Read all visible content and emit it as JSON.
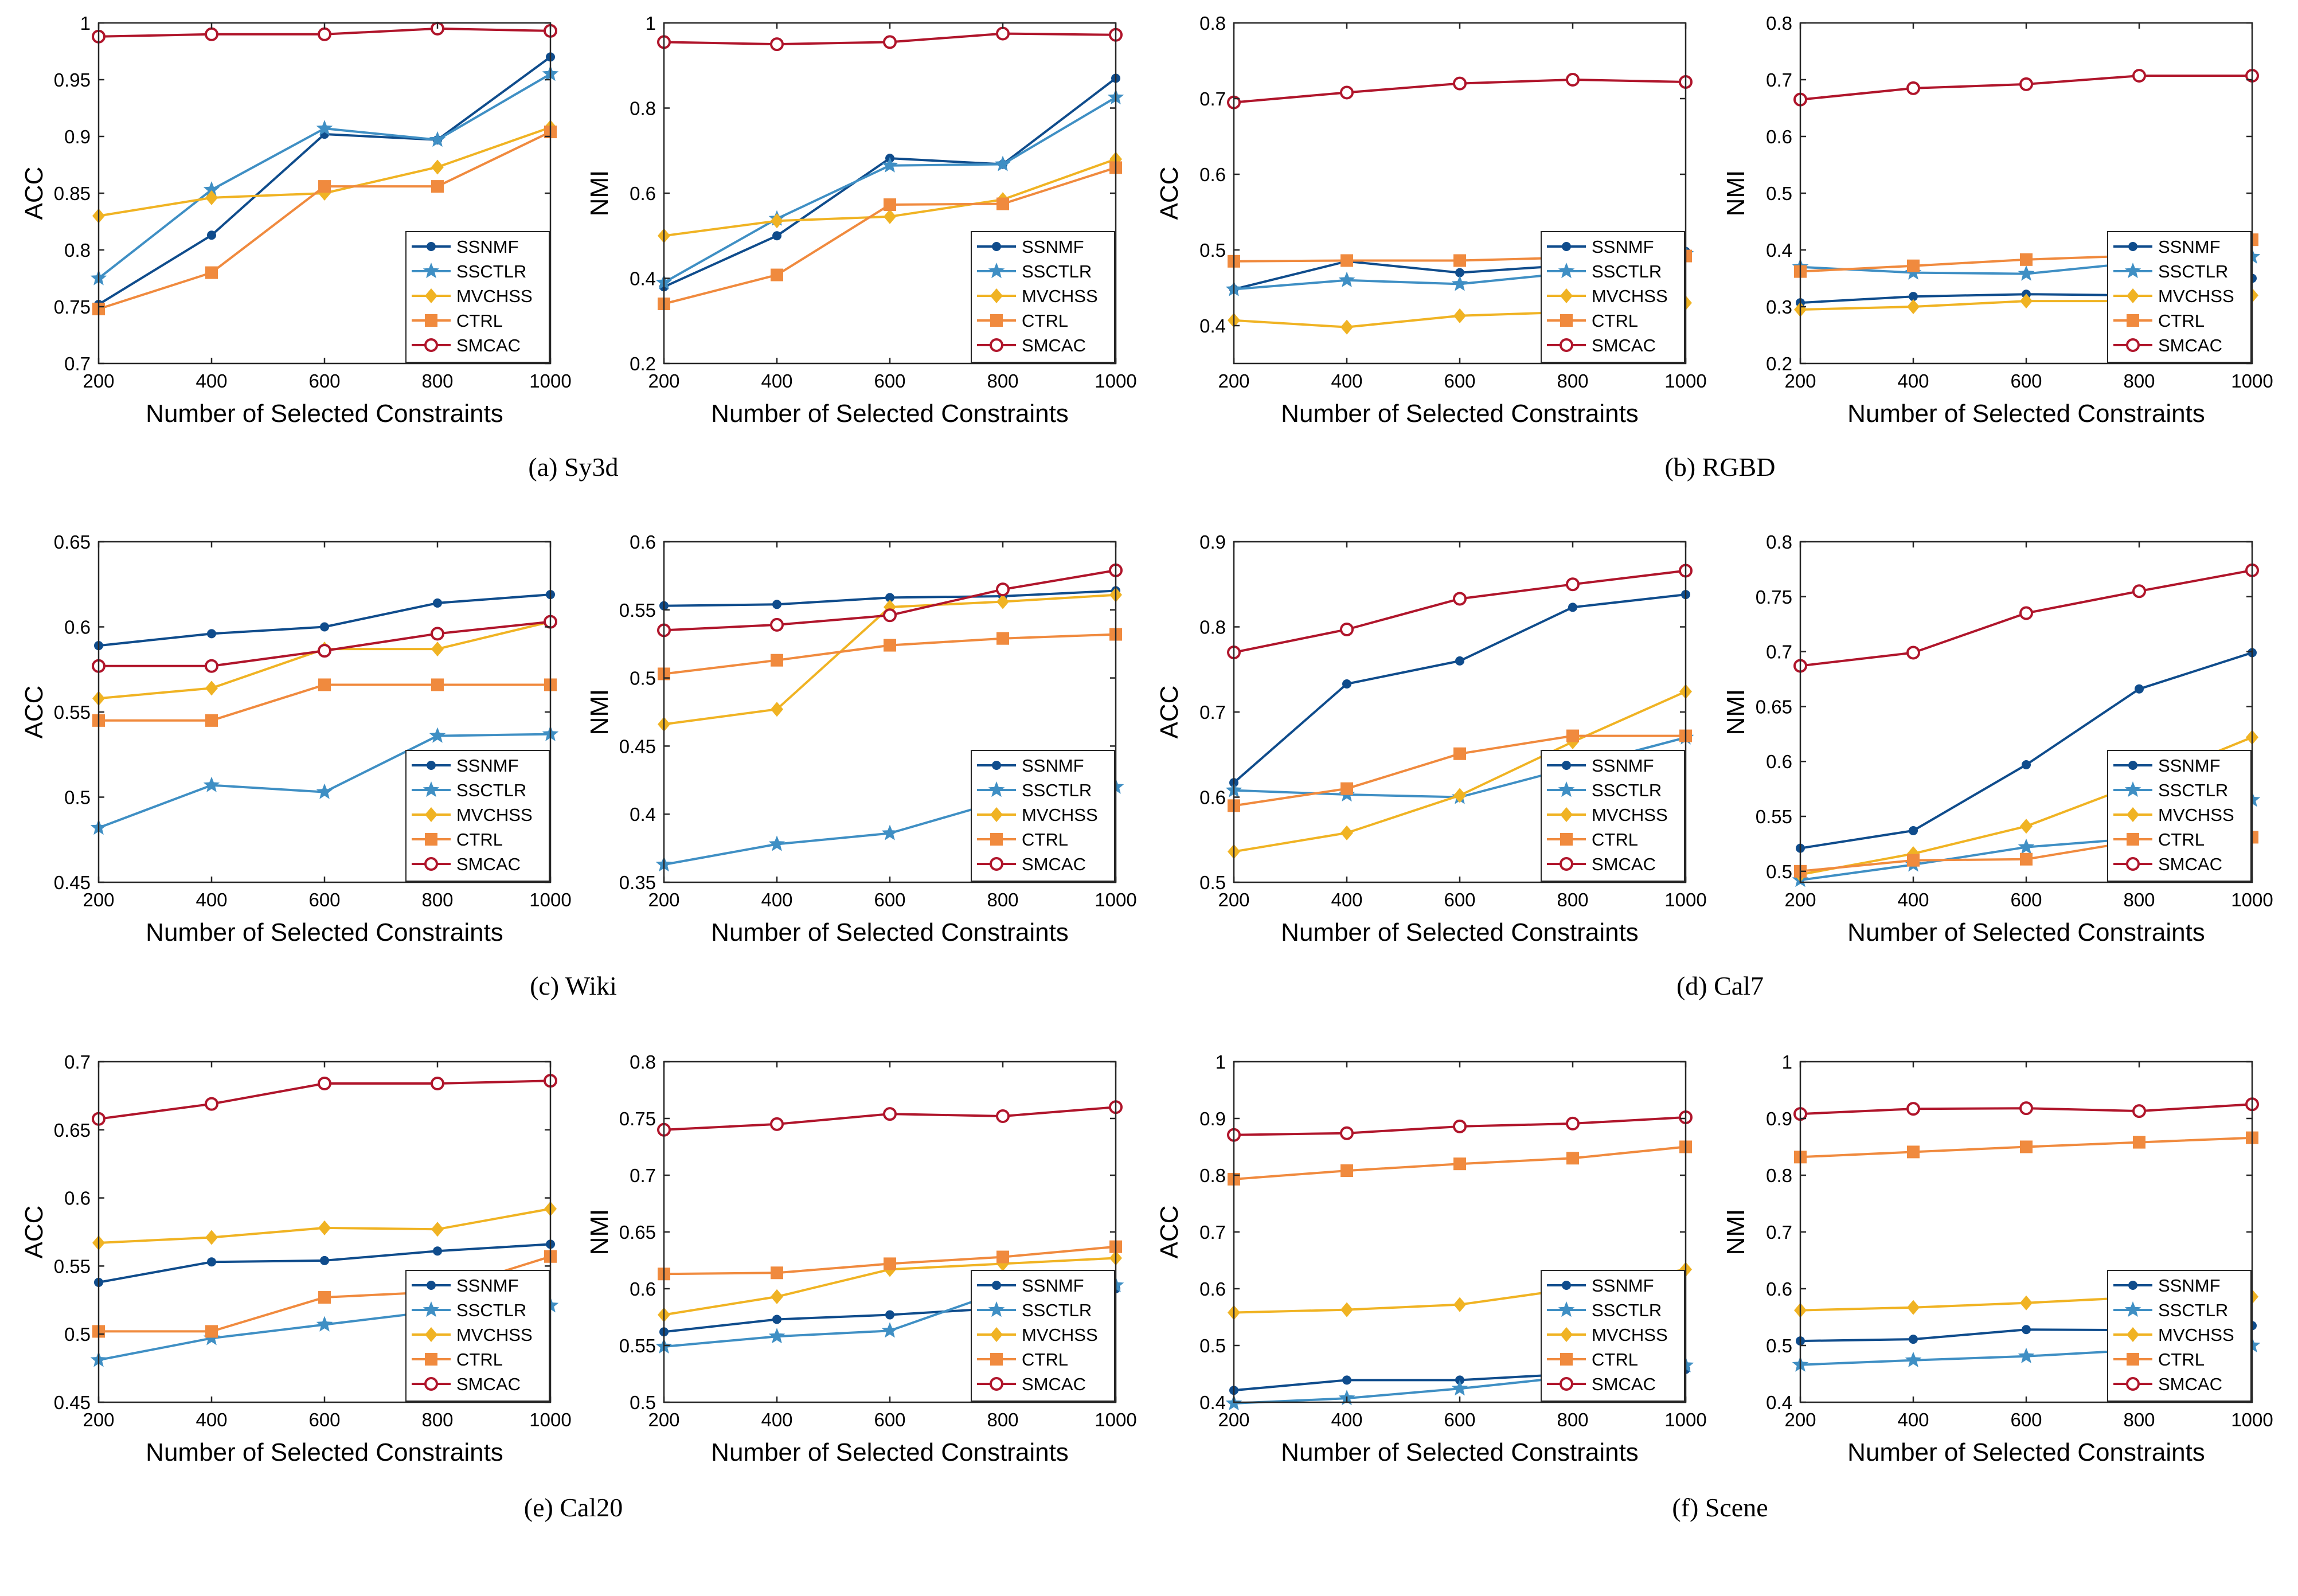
{
  "series_style": [
    {
      "name": "SSNMF",
      "color": "#0f4c8c",
      "marker": "dot"
    },
    {
      "name": "SSCTLR",
      "color": "#3f8fc4",
      "marker": "star"
    },
    {
      "name": "MVCHSS",
      "color": "#f0b323",
      "marker": "diamond"
    },
    {
      "name": "CTRL",
      "color": "#f08a3e",
      "marker": "square"
    },
    {
      "name": "SMCAC",
      "color": "#b0152b",
      "marker": "circle"
    }
  ],
  "chart_data": [
    {
      "type": "line",
      "panel": "a",
      "ylabel": "ACC",
      "xlabel": "Number of Selected Constraints",
      "x": [
        200,
        400,
        600,
        800,
        1000
      ],
      "ylim": [
        0.7,
        1
      ],
      "yticks": [
        0.7,
        0.75,
        0.8,
        0.85,
        0.9,
        0.95,
        1
      ],
      "ytick_labels": [
        "0.7",
        "0.75",
        "0.8",
        "0.85",
        "0.9",
        "0.95",
        "1"
      ],
      "series": [
        {
          "name": "SSNMF",
          "values": [
            0.752,
            0.813,
            0.902,
            0.897,
            0.97
          ]
        },
        {
          "name": "SSCTLR",
          "values": [
            0.775,
            0.853,
            0.907,
            0.897,
            0.955
          ]
        },
        {
          "name": "MVCHSS",
          "values": [
            0.83,
            0.846,
            0.85,
            0.873,
            0.908
          ]
        },
        {
          "name": "CTRL",
          "values": [
            0.748,
            0.78,
            0.856,
            0.856,
            0.904
          ]
        },
        {
          "name": "SMCAC",
          "values": [
            0.988,
            0.99,
            0.99,
            0.995,
            0.993
          ]
        }
      ]
    },
    {
      "type": "line",
      "panel": "a",
      "ylabel": "NMI",
      "xlabel": "Number of Selected Constraints",
      "x": [
        200,
        400,
        600,
        800,
        1000
      ],
      "ylim": [
        0.2,
        1
      ],
      "yticks": [
        0.2,
        0.4,
        0.6,
        0.8,
        1
      ],
      "ytick_labels": [
        "0.2",
        "0.4",
        "0.6",
        "0.8",
        "1"
      ],
      "series": [
        {
          "name": "SSNMF",
          "values": [
            0.38,
            0.5,
            0.682,
            0.668,
            0.87
          ]
        },
        {
          "name": "SSCTLR",
          "values": [
            0.39,
            0.54,
            0.665,
            0.668,
            0.825
          ]
        },
        {
          "name": "MVCHSS",
          "values": [
            0.5,
            0.535,
            0.545,
            0.585,
            0.68
          ]
        },
        {
          "name": "CTRL",
          "values": [
            0.34,
            0.408,
            0.573,
            0.575,
            0.66
          ]
        },
        {
          "name": "SMCAC",
          "values": [
            0.955,
            0.95,
            0.955,
            0.975,
            0.972
          ]
        }
      ]
    },
    {
      "type": "line",
      "panel": "b",
      "ylabel": "ACC",
      "xlabel": "Number of Selected Constraints",
      "x": [
        200,
        400,
        600,
        800,
        1000
      ],
      "ylim": [
        0.35,
        0.8
      ],
      "yticks": [
        0.4,
        0.5,
        0.6,
        0.7,
        0.8
      ],
      "ytick_labels": [
        "0.4",
        "0.5",
        "0.6",
        "0.7",
        "0.8"
      ],
      "series": [
        {
          "name": "SSNMF",
          "values": [
            0.448,
            0.485,
            0.47,
            0.48,
            0.498
          ]
        },
        {
          "name": "SSCTLR",
          "values": [
            0.448,
            0.46,
            0.455,
            0.47,
            0.495
          ]
        },
        {
          "name": "MVCHSS",
          "values": [
            0.407,
            0.398,
            0.413,
            0.418,
            0.43
          ]
        },
        {
          "name": "CTRL",
          "values": [
            0.485,
            0.486,
            0.486,
            0.49,
            0.492
          ]
        },
        {
          "name": "SMCAC",
          "values": [
            0.695,
            0.708,
            0.72,
            0.725,
            0.722
          ]
        }
      ]
    },
    {
      "type": "line",
      "panel": "b",
      "ylabel": "NMI",
      "xlabel": "Number of Selected Constraints",
      "x": [
        200,
        400,
        600,
        800,
        1000
      ],
      "ylim": [
        0.2,
        0.8
      ],
      "yticks": [
        0.2,
        0.3,
        0.4,
        0.5,
        0.6,
        0.7,
        0.8
      ],
      "ytick_labels": [
        "0.2",
        "0.3",
        "0.4",
        "0.5",
        "0.6",
        "0.7",
        "0.8"
      ],
      "series": [
        {
          "name": "SSNMF",
          "values": [
            0.307,
            0.318,
            0.322,
            0.32,
            0.35
          ]
        },
        {
          "name": "SSCTLR",
          "values": [
            0.37,
            0.36,
            0.358,
            0.378,
            0.388
          ]
        },
        {
          "name": "MVCHSS",
          "values": [
            0.295,
            0.3,
            0.31,
            0.31,
            0.32
          ]
        },
        {
          "name": "CTRL",
          "values": [
            0.362,
            0.372,
            0.383,
            0.39,
            0.418
          ]
        },
        {
          "name": "SMCAC",
          "values": [
            0.665,
            0.685,
            0.692,
            0.707,
            0.707
          ]
        }
      ]
    },
    {
      "type": "line",
      "panel": "c",
      "ylabel": "ACC",
      "xlabel": "Number of Selected Constraints",
      "x": [
        200,
        400,
        600,
        800,
        1000
      ],
      "ylim": [
        0.45,
        0.65
      ],
      "yticks": [
        0.45,
        0.5,
        0.55,
        0.6,
        0.65
      ],
      "ytick_labels": [
        "0.45",
        "0.5",
        "0.55",
        "0.6",
        "0.65"
      ],
      "series": [
        {
          "name": "SSNMF",
          "values": [
            0.589,
            0.596,
            0.6,
            0.614,
            0.619
          ]
        },
        {
          "name": "SSCTLR",
          "values": [
            0.482,
            0.507,
            0.503,
            0.536,
            0.537
          ]
        },
        {
          "name": "MVCHSS",
          "values": [
            0.558,
            0.564,
            0.587,
            0.587,
            0.603
          ]
        },
        {
          "name": "CTRL",
          "values": [
            0.545,
            0.545,
            0.566,
            0.566,
            0.566
          ]
        },
        {
          "name": "SMCAC",
          "values": [
            0.577,
            0.577,
            0.586,
            0.596,
            0.603
          ]
        }
      ]
    },
    {
      "type": "line",
      "panel": "c",
      "ylabel": "NMI",
      "xlabel": "Number of Selected Constraints",
      "x": [
        200,
        400,
        600,
        800,
        1000
      ],
      "ylim": [
        0.35,
        0.6
      ],
      "yticks": [
        0.35,
        0.4,
        0.45,
        0.5,
        0.55,
        0.6
      ],
      "ytick_labels": [
        "0.35",
        "0.4",
        "0.45",
        "0.5",
        "0.55",
        "0.6"
      ],
      "series": [
        {
          "name": "SSNMF",
          "values": [
            0.553,
            0.554,
            0.559,
            0.56,
            0.564
          ]
        },
        {
          "name": "SSCTLR",
          "values": [
            0.363,
            0.378,
            0.386,
            0.41,
            0.42
          ]
        },
        {
          "name": "MVCHSS",
          "values": [
            0.466,
            0.477,
            0.552,
            0.556,
            0.561
          ]
        },
        {
          "name": "CTRL",
          "values": [
            0.503,
            0.513,
            0.524,
            0.529,
            0.532
          ]
        },
        {
          "name": "SMCAC",
          "values": [
            0.535,
            0.539,
            0.546,
            0.565,
            0.579
          ]
        }
      ]
    },
    {
      "type": "line",
      "panel": "d",
      "ylabel": "ACC",
      "xlabel": "Number of Selected Constraints",
      "x": [
        200,
        400,
        600,
        800,
        1000
      ],
      "ylim": [
        0.5,
        0.9
      ],
      "yticks": [
        0.5,
        0.6,
        0.7,
        0.8,
        0.9
      ],
      "ytick_labels": [
        "0.5",
        "0.6",
        "0.7",
        "0.8",
        "0.9"
      ],
      "series": [
        {
          "name": "SSNMF",
          "values": [
            0.617,
            0.733,
            0.76,
            0.823,
            0.838
          ]
        },
        {
          "name": "SSCTLR",
          "values": [
            0.608,
            0.603,
            0.6,
            0.635,
            0.67
          ]
        },
        {
          "name": "MVCHSS",
          "values": [
            0.536,
            0.558,
            0.602,
            0.665,
            0.724
          ]
        },
        {
          "name": "CTRL",
          "values": [
            0.59,
            0.61,
            0.651,
            0.672,
            0.672
          ]
        },
        {
          "name": "SMCAC",
          "values": [
            0.77,
            0.797,
            0.833,
            0.85,
            0.866
          ]
        }
      ]
    },
    {
      "type": "line",
      "panel": "d",
      "ylabel": "NMI",
      "xlabel": "Number of Selected Constraints",
      "x": [
        200,
        400,
        600,
        800,
        1000
      ],
      "ylim": [
        0.49,
        0.8
      ],
      "yticks": [
        0.5,
        0.55,
        0.6,
        0.65,
        0.7,
        0.75,
        0.8
      ],
      "ytick_labels": [
        "0.5",
        "0.55",
        "0.6",
        "0.65",
        "0.7",
        "0.75",
        "0.8"
      ],
      "series": [
        {
          "name": "SSNMF",
          "values": [
            0.521,
            0.537,
            0.597,
            0.666,
            0.699
          ]
        },
        {
          "name": "SSCTLR",
          "values": [
            0.492,
            0.506,
            0.522,
            0.53,
            0.565
          ]
        },
        {
          "name": "MVCHSS",
          "values": [
            0.497,
            0.516,
            0.541,
            0.58,
            0.622
          ]
        },
        {
          "name": "CTRL",
          "values": [
            0.5,
            0.51,
            0.511,
            0.528,
            0.531
          ]
        },
        {
          "name": "SMCAC",
          "values": [
            0.687,
            0.699,
            0.735,
            0.755,
            0.774
          ]
        }
      ]
    },
    {
      "type": "line",
      "panel": "e",
      "ylabel": "ACC",
      "xlabel": "Number of Selected Constraints",
      "x": [
        200,
        400,
        600,
        800,
        1000
      ],
      "ylim": [
        0.45,
        0.7
      ],
      "yticks": [
        0.45,
        0.5,
        0.55,
        0.6,
        0.65,
        0.7
      ],
      "ytick_labels": [
        "0.45",
        "0.5",
        "0.55",
        "0.6",
        "0.65",
        "0.7"
      ],
      "series": [
        {
          "name": "SSNMF",
          "values": [
            0.538,
            0.553,
            0.554,
            0.561,
            0.566
          ]
        },
        {
          "name": "SSCTLR",
          "values": [
            0.481,
            0.497,
            0.507,
            0.517,
            0.521
          ]
        },
        {
          "name": "MVCHSS",
          "values": [
            0.567,
            0.571,
            0.578,
            0.577,
            0.592
          ]
        },
        {
          "name": "CTRL",
          "values": [
            0.502,
            0.502,
            0.527,
            0.531,
            0.557
          ]
        },
        {
          "name": "SMCAC",
          "values": [
            0.658,
            0.669,
            0.684,
            0.684,
            0.686
          ]
        }
      ]
    },
    {
      "type": "line",
      "panel": "e",
      "ylabel": "NMI",
      "xlabel": "Number of Selected Constraints",
      "x": [
        200,
        400,
        600,
        800,
        1000
      ],
      "ylim": [
        0.5,
        0.8
      ],
      "yticks": [
        0.5,
        0.55,
        0.6,
        0.65,
        0.7,
        0.75,
        0.8
      ],
      "ytick_labels": [
        "0.5",
        "0.55",
        "0.6",
        "0.65",
        "0.7",
        "0.75",
        "0.8"
      ],
      "series": [
        {
          "name": "SSNMF",
          "values": [
            0.562,
            0.573,
            0.577,
            0.583,
            0.6
          ]
        },
        {
          "name": "SSCTLR",
          "values": [
            0.549,
            0.558,
            0.563,
            0.598,
            0.603
          ]
        },
        {
          "name": "MVCHSS",
          "values": [
            0.577,
            0.593,
            0.617,
            0.622,
            0.627
          ]
        },
        {
          "name": "CTRL",
          "values": [
            0.613,
            0.614,
            0.622,
            0.628,
            0.637
          ]
        },
        {
          "name": "SMCAC",
          "values": [
            0.74,
            0.745,
            0.754,
            0.752,
            0.76
          ]
        }
      ]
    },
    {
      "type": "line",
      "panel": "f",
      "ylabel": "ACC",
      "xlabel": "Number of Selected Constraints",
      "x": [
        200,
        400,
        600,
        800,
        1000
      ],
      "ylim": [
        0.4,
        1
      ],
      "yticks": [
        0.4,
        0.5,
        0.6,
        0.7,
        0.8,
        0.9,
        1
      ],
      "ytick_labels": [
        "0.4",
        "0.5",
        "0.6",
        "0.7",
        "0.8",
        "0.9",
        "1"
      ],
      "series": [
        {
          "name": "SSNMF",
          "values": [
            0.421,
            0.439,
            0.439,
            0.45,
            0.458
          ]
        },
        {
          "name": "SSCTLR",
          "values": [
            0.398,
            0.407,
            0.424,
            0.445,
            0.465
          ]
        },
        {
          "name": "MVCHSS",
          "values": [
            0.558,
            0.563,
            0.572,
            0.6,
            0.634
          ]
        },
        {
          "name": "CTRL",
          "values": [
            0.793,
            0.808,
            0.82,
            0.83,
            0.85
          ]
        },
        {
          "name": "SMCAC",
          "values": [
            0.871,
            0.874,
            0.886,
            0.891,
            0.902
          ]
        }
      ]
    },
    {
      "type": "line",
      "panel": "f",
      "ylabel": "NMI",
      "xlabel": "Number of Selected Constraints",
      "x": [
        200,
        400,
        600,
        800,
        1000
      ],
      "ylim": [
        0.4,
        1
      ],
      "yticks": [
        0.4,
        0.5,
        0.6,
        0.7,
        0.8,
        0.9,
        1
      ],
      "ytick_labels": [
        "0.4",
        "0.5",
        "0.6",
        "0.7",
        "0.8",
        "0.9",
        "1"
      ],
      "series": [
        {
          "name": "SSNMF",
          "values": [
            0.508,
            0.511,
            0.528,
            0.527,
            0.535
          ]
        },
        {
          "name": "SSCTLR",
          "values": [
            0.466,
            0.474,
            0.481,
            0.492,
            0.5
          ]
        },
        {
          "name": "MVCHSS",
          "values": [
            0.562,
            0.567,
            0.575,
            0.585,
            0.586
          ]
        },
        {
          "name": "CTRL",
          "values": [
            0.832,
            0.841,
            0.85,
            0.858,
            0.866
          ]
        },
        {
          "name": "SMCAC",
          "values": [
            0.908,
            0.917,
            0.918,
            0.913,
            0.925
          ]
        }
      ]
    }
  ],
  "captions": [
    {
      "panel": "a",
      "text": "(a)  Sy3d"
    },
    {
      "panel": "b",
      "text": "(b)  RGBD"
    },
    {
      "panel": "c",
      "text": "(c)  Wiki"
    },
    {
      "panel": "d",
      "text": "(d)  Cal7"
    },
    {
      "panel": "e",
      "text": "(e)  Cal20"
    },
    {
      "panel": "f",
      "text": "(f)  Scene"
    }
  ]
}
